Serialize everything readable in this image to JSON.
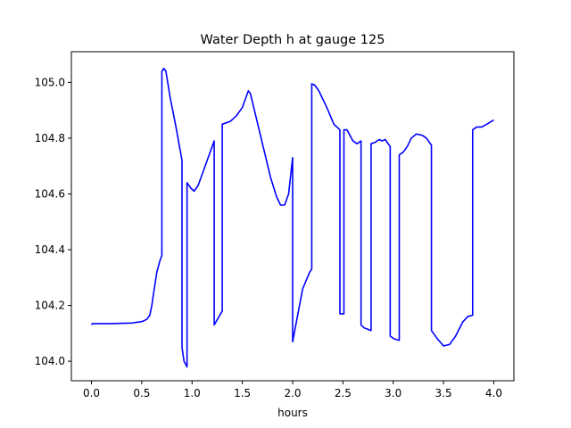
{
  "chart_data": {
    "type": "line",
    "title": "Water Depth h at gauge 125",
    "xlabel": "hours",
    "ylabel": "",
    "xlim": [
      -0.2,
      4.2
    ],
    "ylim": [
      103.93,
      105.11
    ],
    "xticks": [
      0.0,
      0.5,
      1.0,
      1.5,
      2.0,
      2.5,
      3.0,
      3.5,
      4.0
    ],
    "xtick_labels": [
      "0.0",
      "0.5",
      "1.0",
      "1.5",
      "2.0",
      "2.5",
      "3.0",
      "3.5",
      "4.0"
    ],
    "yticks": [
      104.0,
      104.2,
      104.4,
      104.6,
      104.8,
      105.0
    ],
    "ytick_labels": [
      "104.0",
      "104.2",
      "104.4",
      "104.6",
      "104.8",
      "105.0"
    ],
    "grid": false,
    "legend": "none",
    "series": [
      {
        "color": "#0000ff",
        "x": [
          0.0,
          0.01,
          0.2,
          0.4,
          0.5,
          0.55,
          0.58,
          0.6,
          0.62,
          0.65,
          0.68,
          0.7,
          0.7,
          0.72,
          0.74,
          0.78,
          0.84,
          0.9,
          0.9,
          0.92,
          0.95,
          0.95,
          0.99,
          1.02,
          1.06,
          1.12,
          1.22,
          1.22,
          1.3,
          1.3,
          1.38,
          1.44,
          1.5,
          1.56,
          1.58,
          1.62,
          1.7,
          1.78,
          1.84,
          1.88,
          1.92,
          1.96,
          2.0,
          2.0,
          2.1,
          2.17,
          2.19,
          2.19,
          2.22,
          2.26,
          2.34,
          2.41,
          2.47,
          2.47,
          2.51,
          2.51,
          2.54,
          2.6,
          2.64,
          2.68,
          2.68,
          2.71,
          2.78,
          2.78,
          2.82,
          2.86,
          2.89,
          2.92,
          2.97,
          2.97,
          3.01,
          3.06,
          3.06,
          3.1,
          3.14,
          3.18,
          3.23,
          3.29,
          3.33,
          3.38,
          3.38,
          3.44,
          3.5,
          3.56,
          3.62,
          3.69,
          3.74,
          3.79,
          3.79,
          3.83,
          3.88,
          3.93,
          4.0
        ],
        "y": [
          104.13,
          104.135,
          104.135,
          104.137,
          104.142,
          104.15,
          104.165,
          104.2,
          104.25,
          104.32,
          104.36,
          104.38,
          105.04,
          105.05,
          105.04,
          104.95,
          104.84,
          104.72,
          104.05,
          104.0,
          103.98,
          104.64,
          104.62,
          104.61,
          104.63,
          104.69,
          104.79,
          104.13,
          104.18,
          104.85,
          104.86,
          104.88,
          104.91,
          104.97,
          104.96,
          104.9,
          104.78,
          104.66,
          104.59,
          104.56,
          104.56,
          104.6,
          104.73,
          104.07,
          104.26,
          104.32,
          104.33,
          104.995,
          104.99,
          104.97,
          104.91,
          104.85,
          104.83,
          104.17,
          104.17,
          104.83,
          104.83,
          104.79,
          104.78,
          104.79,
          104.13,
          104.12,
          104.11,
          104.78,
          104.785,
          104.795,
          104.79,
          104.795,
          104.77,
          104.09,
          104.08,
          104.075,
          104.74,
          104.75,
          104.77,
          104.8,
          104.815,
          104.81,
          104.8,
          104.775,
          104.11,
          104.08,
          104.055,
          104.06,
          104.09,
          104.14,
          104.16,
          104.165,
          104.83,
          104.84,
          104.84,
          104.85,
          104.865
        ]
      }
    ]
  }
}
